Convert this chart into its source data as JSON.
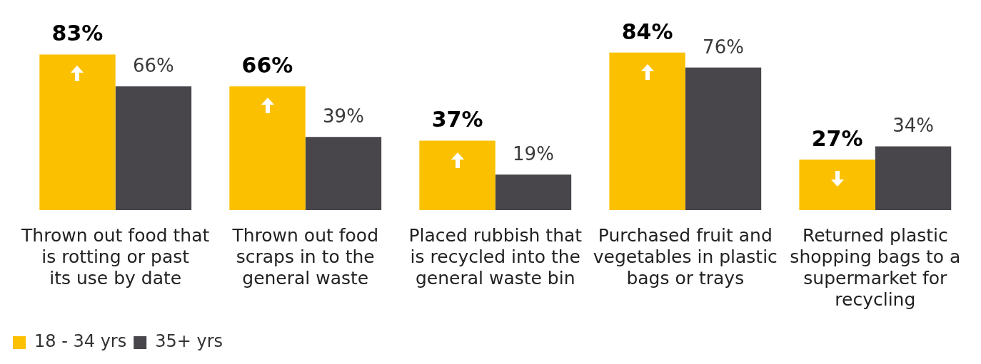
{
  "chart_data": {
    "type": "bar",
    "categories": [
      "Thrown out food that is rotting or past its use by date",
      "Thrown out food scraps in to the general waste",
      "Placed rubbish that is recycled into the general waste bin",
      "Purchased fruit and vegetables in plastic bags or trays",
      "Returned plastic shopping bags to a supermarket for recycling"
    ],
    "series": [
      {
        "name": "18 - 34 yrs",
        "color": "#fbc100",
        "values": [
          83,
          66,
          37,
          84,
          27
        ],
        "value_labels": [
          "83%",
          "66%",
          "37%",
          "84%",
          "27%"
        ]
      },
      {
        "name": "35+ yrs",
        "color": "#48464b",
        "values": [
          66,
          39,
          19,
          76,
          34
        ],
        "value_labels": [
          "66%",
          "39%",
          "19%",
          "76%",
          "34%"
        ]
      }
    ],
    "tick_labels": "x",
    "grid": false,
    "legend": "bottom left"
  }
}
